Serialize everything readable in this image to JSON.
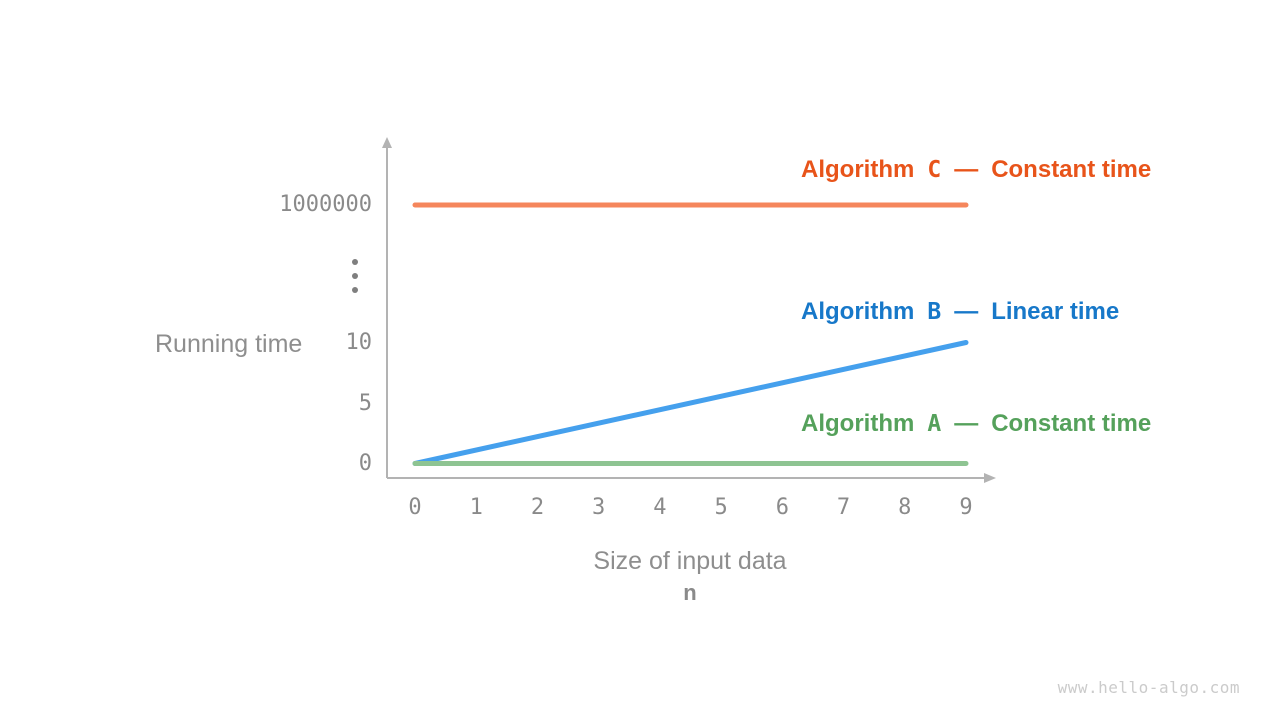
{
  "watermark": "www.hello-algo.com",
  "chart_data": {
    "type": "line",
    "title": "",
    "xlabel": "Size of input data",
    "xlabel_symbol": "n",
    "ylabel": "Running time",
    "x_range": [
      0,
      9
    ],
    "x_ticks": [
      "0",
      "1",
      "2",
      "3",
      "4",
      "5",
      "6",
      "7",
      "8",
      "9"
    ],
    "y_ticks": [
      {
        "label": "0",
        "value": 0
      },
      {
        "label": "5",
        "value": 5
      },
      {
        "label": "10",
        "value": 10
      },
      {
        "label": "1000000",
        "value": 1000000
      }
    ],
    "y_axis_broken": true,
    "y_axis_break_marker": "⋮",
    "grid": false,
    "legend_position": "right-of-lines",
    "axis_color": "#B3B3B3",
    "tick_color": "#8A8A8A",
    "series": [
      {
        "name": "Algorithm C",
        "separator": "—",
        "complexity": "Constant time",
        "line_color": "#F5865C",
        "label_color": "#E8541A",
        "points": [
          [
            0,
            1000000
          ],
          [
            9,
            1000000
          ]
        ]
      },
      {
        "name": "Algorithm B",
        "separator": "—",
        "complexity": "Linear time",
        "line_color": "#45A0ED",
        "label_color": "#1778C9",
        "points": [
          [
            0,
            0
          ],
          [
            9,
            10
          ]
        ]
      },
      {
        "name": "Algorithm A",
        "separator": "—",
        "complexity": "Constant time",
        "line_color": "#8EC492",
        "label_color": "#55A15B",
        "points": [
          [
            0,
            0
          ],
          [
            9,
            0
          ]
        ]
      }
    ]
  }
}
